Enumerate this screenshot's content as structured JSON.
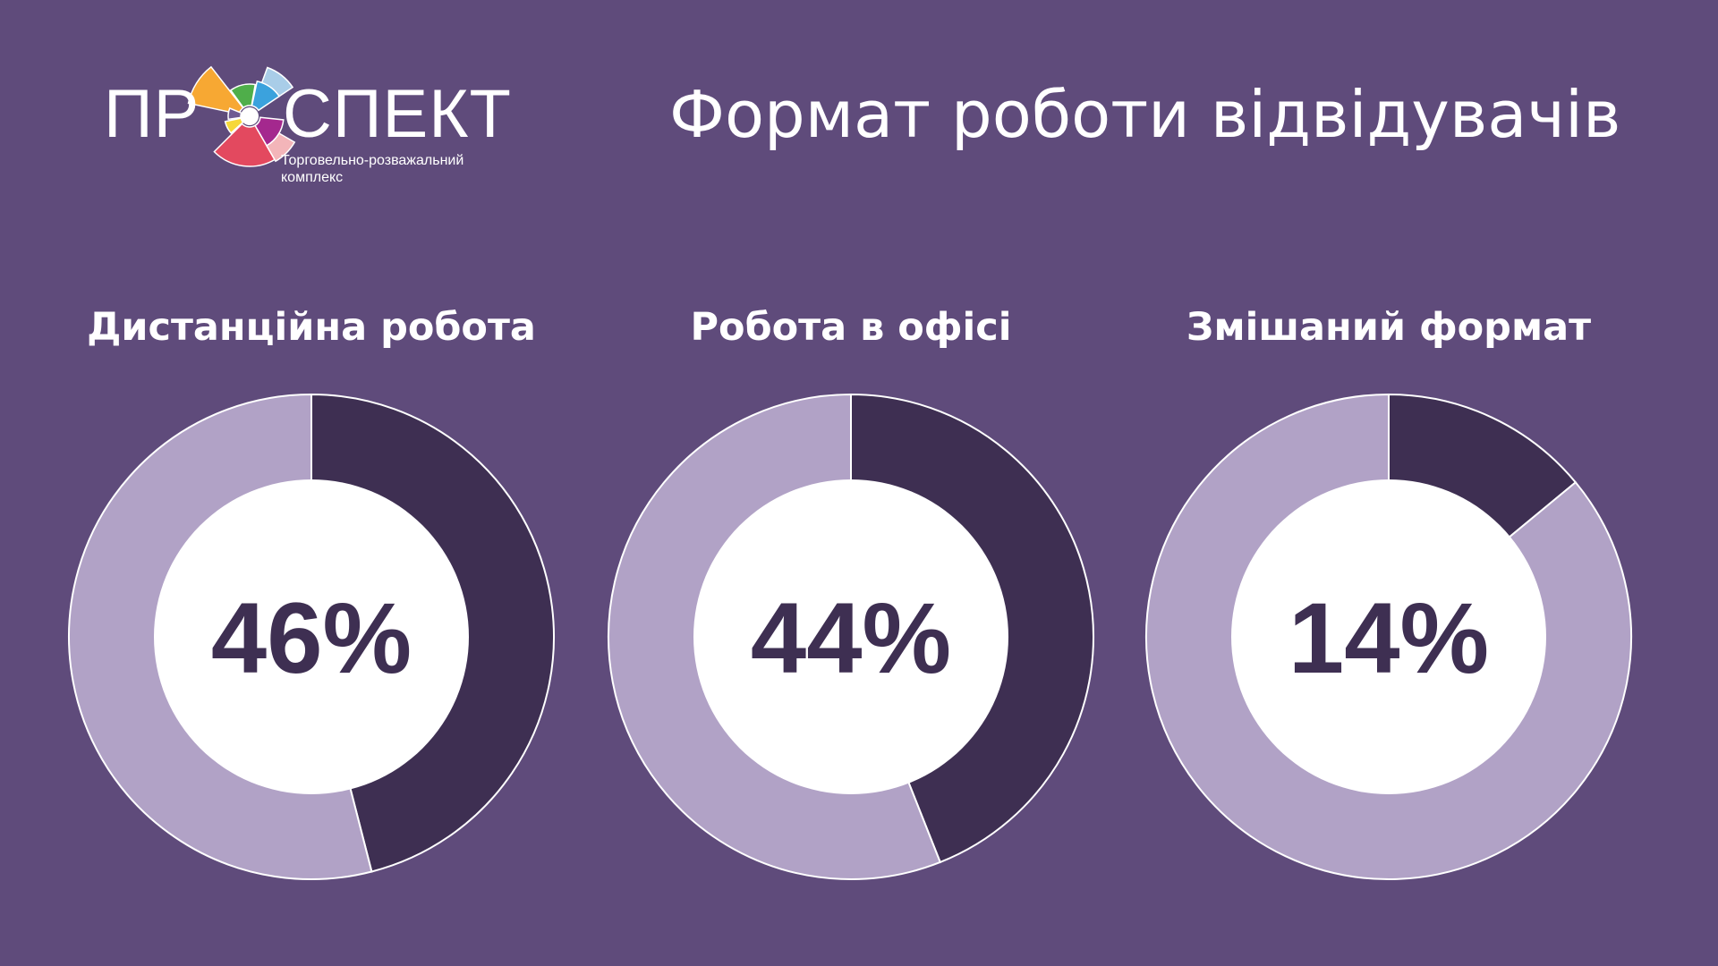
{
  "brand": {
    "word_left": "ПР",
    "word_right": "СПЕКТ",
    "subtitle_line1": "Торговельно-розважальний",
    "subtitle_line2": "комплекс",
    "petal_colors": [
      "#f7a833",
      "#4fae4a",
      "#3ba2dd",
      "#a9cde8",
      "#e3495f",
      "#a4288e",
      "#f6d83a",
      "#f3b5b9",
      "#6f5a92"
    ]
  },
  "title": "Формат роботи відвідувачів",
  "colors": {
    "background": "#5f4b7b",
    "share": "#3e2f52",
    "rest": "#b1a2c6",
    "center": "#ffffff",
    "value_text": "#3e2f52"
  },
  "chart_data": [
    {
      "type": "pie",
      "title": "Дистанційна робота",
      "center_label": "46%",
      "values": [
        46,
        54
      ]
    },
    {
      "type": "pie",
      "title": "Робота в офісі",
      "center_label": "44%",
      "values": [
        44,
        56
      ]
    },
    {
      "type": "pie",
      "title": "Змішаний формат",
      "center_label": "14%",
      "values": [
        14,
        86
      ]
    }
  ]
}
